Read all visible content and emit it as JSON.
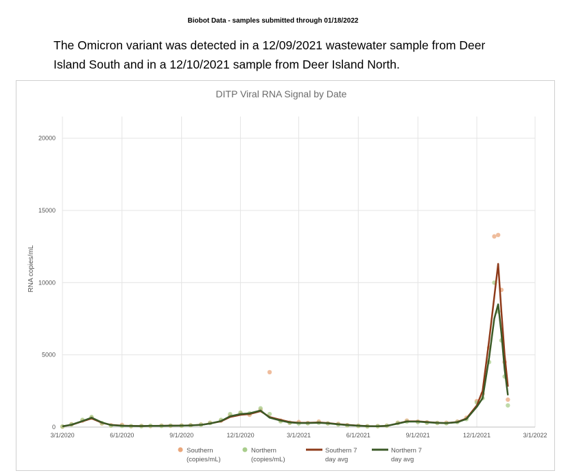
{
  "header": {
    "note": "Biobot Data - samples submitted through 01/18/2022",
    "text": "The Omicron variant was detected in a 12/09/2021 wastewater sample from Deer Island South and in a 12/10/2021 sample from Deer Island North."
  },
  "chart_data": {
    "type": "scatter-line",
    "title": "DITP Viral RNA Signal by Date",
    "y_label": "RNA copies/mL",
    "x": [
      "3/1/2020",
      "3/15/2020",
      "4/1/2020",
      "4/15/2020",
      "5/1/2020",
      "5/15/2020",
      "6/1/2020",
      "6/15/2020",
      "7/1/2020",
      "7/15/2020",
      "8/1/2020",
      "8/15/2020",
      "9/1/2020",
      "9/15/2020",
      "10/1/2020",
      "10/15/2020",
      "11/1/2020",
      "11/15/2020",
      "12/1/2020",
      "12/15/2020",
      "1/1/2021",
      "1/15/2021",
      "2/1/2021",
      "2/15/2021",
      "3/1/2021",
      "3/15/2021",
      "4/1/2021",
      "4/15/2021",
      "5/1/2021",
      "5/15/2021",
      "6/1/2021",
      "6/15/2021",
      "7/1/2021",
      "7/15/2021",
      "8/1/2021",
      "8/15/2021",
      "9/1/2021",
      "9/15/2021",
      "10/1/2021",
      "10/15/2021",
      "11/1/2021",
      "11/15/2021",
      "12/1/2021",
      "12/10/2021",
      "12/20/2021",
      "12/28/2021",
      "1/3/2022",
      "1/8/2022",
      "1/13/2022",
      "1/18/2022"
    ],
    "series": [
      {
        "name": "Southern (copies/mL)",
        "kind": "points",
        "color": "#e9a77c",
        "values": [
          30,
          200,
          450,
          650,
          250,
          120,
          150,
          60,
          80,
          70,
          100,
          90,
          110,
          130,
          180,
          300,
          450,
          800,
          950,
          850,
          1200,
          3800,
          450,
          300,
          350,
          280,
          380,
          260,
          220,
          130,
          90,
          60,
          70,
          100,
          300,
          450,
          380,
          330,
          290,
          300,
          380,
          650,
          1800,
          2300,
          5500,
          13200,
          13300,
          9500,
          4500,
          1900
        ]
      },
      {
        "name": "Northern (copies/mL)",
        "kind": "points",
        "color": "#a9cd8c",
        "values": [
          40,
          180,
          500,
          700,
          280,
          100,
          80,
          70,
          60,
          90,
          80,
          100,
          90,
          120,
          160,
          280,
          500,
          900,
          1000,
          950,
          1300,
          900,
          400,
          300,
          250,
          260,
          300,
          250,
          180,
          120,
          80,
          50,
          60,
          90,
          280,
          380,
          350,
          300,
          280,
          260,
          350,
          550,
          1700,
          2000,
          4500,
          10000,
          8000,
          6000,
          3500,
          1500
        ]
      },
      {
        "name": "Southern 7 day avg",
        "kind": "line",
        "color": "#8e3b1a",
        "values": [
          50,
          150,
          400,
          600,
          300,
          150,
          100,
          80,
          70,
          80,
          90,
          100,
          100,
          120,
          150,
          250,
          400,
          700,
          850,
          900,
          1100,
          700,
          500,
          350,
          300,
          300,
          320,
          280,
          200,
          150,
          100,
          70,
          60,
          80,
          250,
          400,
          400,
          350,
          300,
          280,
          350,
          600,
          1500,
          2500,
          6000,
          9000,
          11300,
          8000,
          5000,
          2800
        ]
      },
      {
        "name": "Northern 7 day avg",
        "kind": "line",
        "color": "#3b5a27",
        "values": [
          50,
          160,
          420,
          650,
          320,
          140,
          90,
          75,
          70,
          80,
          85,
          95,
          100,
          115,
          150,
          240,
          420,
          750,
          900,
          950,
          1150,
          650,
          450,
          320,
          280,
          280,
          300,
          260,
          190,
          140,
          95,
          65,
          60,
          85,
          240,
          380,
          380,
          330,
          290,
          270,
          330,
          560,
          1400,
          2000,
          4800,
          7500,
          8500,
          6500,
          4000,
          2200
        ]
      }
    ],
    "xlim": [
      "3/1/2020",
      "3/1/2022"
    ],
    "xticks": [
      "3/1/2020",
      "6/1/2020",
      "9/1/2020",
      "12/1/2020",
      "3/1/2021",
      "6/1/2021",
      "9/1/2021",
      "12/1/2021",
      "3/1/2022"
    ],
    "ylim": [
      0,
      21500
    ],
    "yticks": [
      0,
      5000,
      10000,
      15000,
      20000
    ],
    "grid": true
  }
}
